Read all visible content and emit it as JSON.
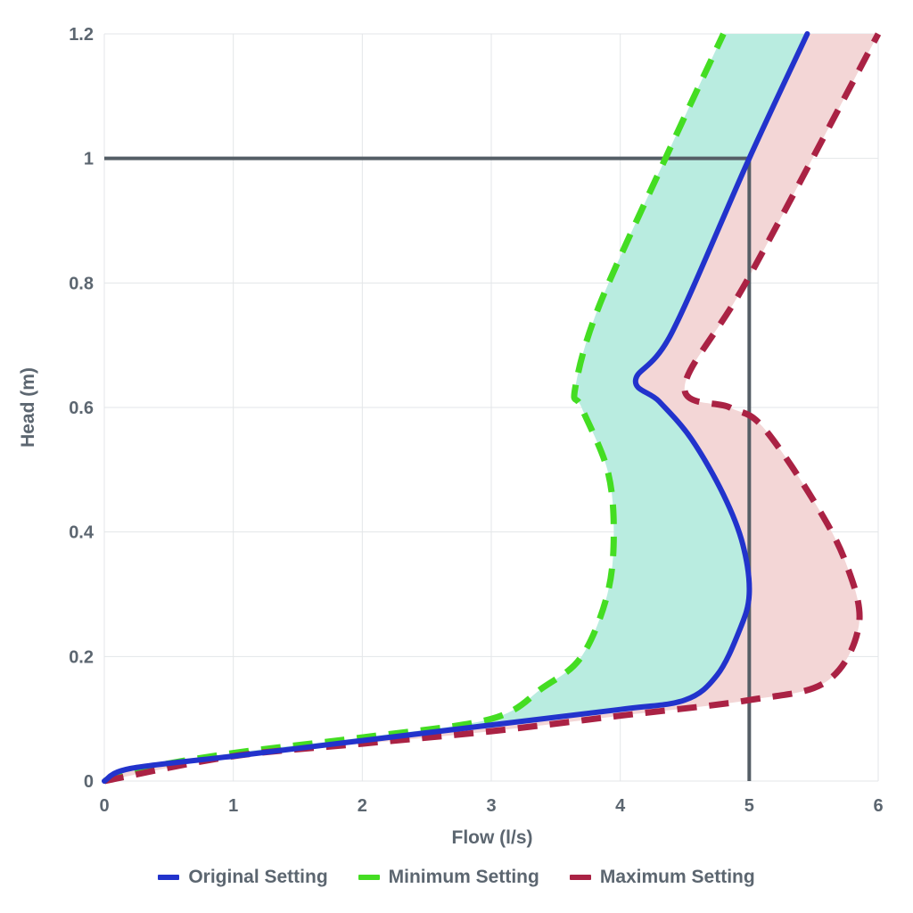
{
  "chart_data": {
    "type": "line",
    "xlabel": "Flow (l/s)",
    "ylabel": "Head (m)",
    "xlim": [
      0,
      6
    ],
    "ylim": [
      0,
      1.2
    ],
    "x_ticks": [
      "0",
      "1",
      "2",
      "3",
      "4",
      "5",
      "6"
    ],
    "y_ticks": [
      "0",
      "0.2",
      "0.4",
      "0.6",
      "0.8",
      "1",
      "1.2"
    ],
    "grid": true,
    "legend_position": "bottom",
    "series": [
      {
        "name": "Original Setting",
        "color": "#2233cc",
        "style": "solid",
        "points": [
          [
            0,
            0
          ],
          [
            0.2,
            0.02
          ],
          [
            1,
            0.04
          ],
          [
            2,
            0.065
          ],
          [
            3,
            0.09
          ],
          [
            4,
            0.115
          ],
          [
            4.5,
            0.13
          ],
          [
            4.75,
            0.17
          ],
          [
            4.92,
            0.24
          ],
          [
            5,
            0.3
          ],
          [
            4.95,
            0.38
          ],
          [
            4.8,
            0.46
          ],
          [
            4.55,
            0.55
          ],
          [
            4.3,
            0.61
          ],
          [
            4.12,
            0.645
          ],
          [
            4.4,
            0.72
          ],
          [
            5,
            1.0
          ],
          [
            5.45,
            1.2
          ]
        ]
      },
      {
        "name": "Minimum Setting",
        "color": "#44dd22",
        "style": "dashed",
        "points": [
          [
            0,
            0
          ],
          [
            0.3,
            0.02
          ],
          [
            1,
            0.045
          ],
          [
            2,
            0.07
          ],
          [
            3,
            0.1
          ],
          [
            3.4,
            0.15
          ],
          [
            3.7,
            0.2
          ],
          [
            3.9,
            0.3
          ],
          [
            3.95,
            0.4
          ],
          [
            3.9,
            0.5
          ],
          [
            3.7,
            0.6
          ],
          [
            3.65,
            0.63
          ],
          [
            3.83,
            0.76
          ],
          [
            4.35,
            1.0
          ],
          [
            4.8,
            1.2
          ]
        ]
      },
      {
        "name": "Maximum Setting",
        "color": "#aa2244",
        "style": "dashed",
        "points": [
          [
            0,
            0
          ],
          [
            1,
            0.04
          ],
          [
            2,
            0.06
          ],
          [
            3,
            0.08
          ],
          [
            4,
            0.105
          ],
          [
            5,
            0.13
          ],
          [
            5.6,
            0.16
          ],
          [
            5.85,
            0.25
          ],
          [
            5.75,
            0.35
          ],
          [
            5.5,
            0.45
          ],
          [
            5.1,
            0.57
          ],
          [
            4.85,
            0.6
          ],
          [
            4.5,
            0.635
          ],
          [
            5,
            0.81
          ],
          [
            6,
            1.2
          ]
        ]
      }
    ],
    "reference_lines": {
      "horizontal_y": 1,
      "vertical_x": 5,
      "color": "#555e66"
    },
    "fills": [
      {
        "between": [
          "Minimum Setting",
          "Original Setting"
        ],
        "color": "#b9ece0"
      },
      {
        "between": [
          "Original Setting",
          "Maximum Setting"
        ],
        "color": "#f3d6d6"
      }
    ]
  }
}
